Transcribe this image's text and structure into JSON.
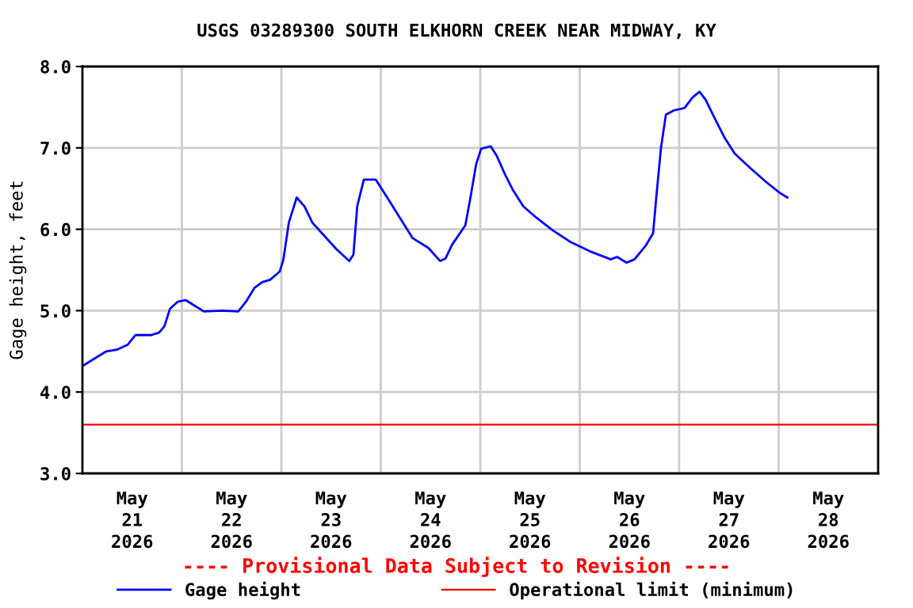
{
  "chart_data": {
    "type": "line",
    "title": "USGS 03289300 SOUTH ELKHORN CREEK NEAR MIDWAY, KY",
    "ylabel": "Gage height, feet",
    "annotations": [
      "---- Provisional Data Subject to Revision ----"
    ],
    "xlim": [
      "2026-05-21T00:00",
      "2026-05-29T00:00"
    ],
    "ylim": [
      3,
      8
    ],
    "xticks": [
      {
        "value": "2026-05-21T12:00",
        "label": "May\n21\n2026"
      },
      {
        "value": "2026-05-22T00:00",
        "label": null
      },
      {
        "value": "2026-05-22T12:00",
        "label": "May\n22\n2026"
      },
      {
        "value": "2026-05-23T00:00",
        "label": null
      },
      {
        "value": "2026-05-23T12:00",
        "label": "May\n23\n2026"
      },
      {
        "value": "2026-05-24T00:00",
        "label": null
      },
      {
        "value": "2026-05-24T12:00",
        "label": "May\n24\n2026"
      },
      {
        "value": "2026-05-25T00:00",
        "label": null
      },
      {
        "value": "2026-05-25T12:00",
        "label": "May\n25\n2026"
      },
      {
        "value": "2026-05-26T00:00",
        "label": null
      },
      {
        "value": "2026-05-26T12:00",
        "label": "May\n26\n2026"
      },
      {
        "value": "2026-05-27T00:00",
        "label": null
      },
      {
        "value": "2026-05-27T12:00",
        "label": "May\n27\n2026"
      },
      {
        "value": "2026-05-28T00:00",
        "label": null
      },
      {
        "value": "2026-05-28T12:00",
        "label": "May\n28\n2026"
      }
    ],
    "yticks": [
      {
        "value": 3,
        "label": "3.0"
      },
      {
        "value": 4,
        "label": "4.0"
      },
      {
        "value": 5,
        "label": "5.0"
      },
      {
        "value": 6,
        "label": "6.0"
      },
      {
        "value": 7,
        "label": "7.0"
      },
      {
        "value": 8,
        "label": "8.0"
      }
    ],
    "grid": true,
    "legend": "bottom",
    "line_style": "solid",
    "ref_lines": [
      {
        "axis": "y",
        "value": 3.6,
        "label": "Operational limit (minimum)",
        "color": "#ff0000"
      }
    ],
    "series": [
      {
        "name": "Gage height",
        "color": "#0000ff",
        "x": [
          "2026-05-21T00:00",
          "2026-05-21T03:12",
          "2026-05-21T05:48",
          "2026-05-21T08:18",
          "2026-05-21T10:54",
          "2026-05-21T12:48",
          "2026-05-21T16:36",
          "2026-05-21T18:30",
          "2026-05-21T19:48",
          "2026-05-21T21:06",
          "2026-05-21T23:00",
          "2026-05-22T00:54",
          "2026-05-22T02:48",
          "2026-05-22T05:18",
          "2026-05-22T09:48",
          "2026-05-22T13:36",
          "2026-05-22T15:36",
          "2026-05-22T17:30",
          "2026-05-22T19:24",
          "2026-05-22T21:18",
          "2026-05-22T23:36",
          "2026-05-23T00:30",
          "2026-05-23T01:48",
          "2026-05-23T03:42",
          "2026-05-23T05:36",
          "2026-05-23T07:30",
          "2026-05-23T10:00",
          "2026-05-23T13:12",
          "2026-05-23T16:24",
          "2026-05-23T17:24",
          "2026-05-23T18:18",
          "2026-05-23T19:54",
          "2026-05-23T22:48",
          "2026-05-24T01:18",
          "2026-05-24T04:30",
          "2026-05-24T07:42",
          "2026-05-24T11:30",
          "2026-05-24T14:18",
          "2026-05-24T15:36",
          "2026-05-24T17:12",
          "2026-05-24T20:24",
          "2026-05-24T21:42",
          "2026-05-24T23:00",
          "2026-05-25T00:12",
          "2026-05-25T02:30",
          "2026-05-25T04:00",
          "2026-05-25T06:00",
          "2026-05-25T07:54",
          "2026-05-25T10:24",
          "2026-05-25T13:36",
          "2026-05-25T17:24",
          "2026-05-25T21:54",
          "2026-05-26T02:24",
          "2026-05-26T07:30",
          "2026-05-26T09:00",
          "2026-05-26T11:18",
          "2026-05-26T13:12",
          "2026-05-26T15:48",
          "2026-05-26T17:42",
          "2026-05-26T18:30",
          "2026-05-26T19:36",
          "2026-05-26T20:48",
          "2026-05-26T22:42",
          "2026-05-27T01:18",
          "2026-05-27T03:12",
          "2026-05-27T04:54",
          "2026-05-27T06:24",
          "2026-05-27T08:18",
          "2026-05-27T10:54",
          "2026-05-27T13:24",
          "2026-05-27T17:12",
          "2026-05-27T21:00",
          "2026-05-28T00:12",
          "2026-05-28T02:06"
        ],
        "values": [
          4.32,
          4.42,
          4.5,
          4.52,
          4.58,
          4.7,
          4.7,
          4.73,
          4.81,
          5.02,
          5.11,
          5.13,
          5.07,
          4.99,
          5.0,
          4.99,
          5.12,
          5.28,
          5.35,
          5.38,
          5.48,
          5.63,
          6.08,
          6.39,
          6.28,
          6.08,
          5.94,
          5.76,
          5.61,
          5.69,
          6.28,
          6.61,
          6.61,
          6.41,
          6.15,
          5.89,
          5.77,
          5.61,
          5.64,
          5.81,
          6.05,
          6.41,
          6.8,
          6.99,
          7.02,
          6.9,
          6.67,
          6.48,
          6.28,
          6.14,
          5.99,
          5.84,
          5.73,
          5.63,
          5.66,
          5.59,
          5.63,
          5.79,
          5.95,
          6.41,
          7.0,
          7.41,
          7.46,
          7.49,
          7.62,
          7.69,
          7.59,
          7.39,
          7.13,
          6.93,
          6.75,
          6.58,
          6.45,
          6.39
        ]
      }
    ]
  }
}
